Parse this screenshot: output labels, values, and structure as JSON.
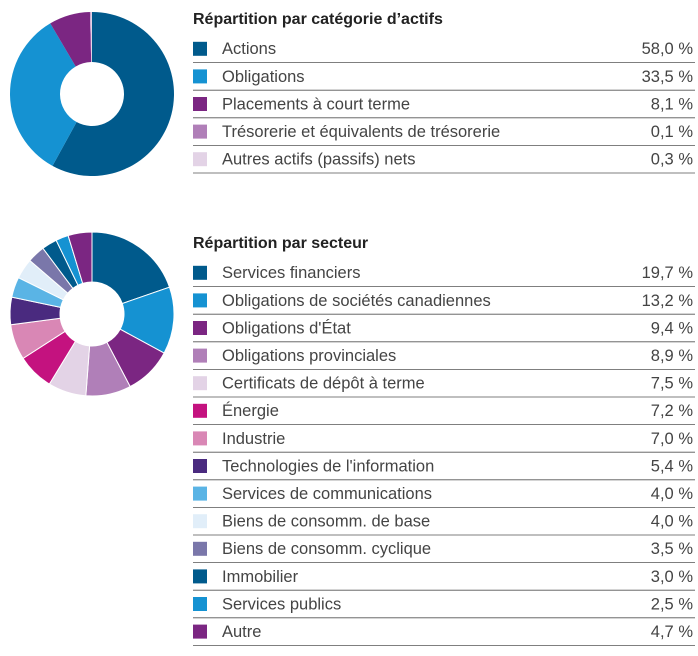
{
  "chart_data": [
    {
      "type": "pie",
      "title": "Répartition par catégorie d’actifs",
      "categories": [
        "Actions",
        "Obligations",
        "Placements à court terme",
        "Trésorerie et équivalents de trésorerie",
        "Autres actifs (passifs) nets"
      ],
      "values": [
        58.0,
        33.5,
        8.1,
        0.1,
        0.3
      ],
      "value_labels": [
        "58,0 %",
        "33,5 %",
        "8,1 %",
        "0,1 %",
        "0,3 %"
      ],
      "colors": [
        "#005a8c",
        "#1592d2",
        "#7b2682",
        "#b07fb8",
        "#e3d3e6"
      ]
    },
    {
      "type": "pie",
      "title": "Répartition par secteur",
      "categories": [
        "Services financiers",
        "Obligations de sociétés canadiennes",
        "Obligations d'État",
        "Obligations provinciales",
        "Certificats de dépôt à terme",
        "Énergie",
        "Industrie",
        "Technologies de l'information",
        "Services de communications",
        "Biens de consomm. de base",
        "Biens de consomm. cyclique",
        "Immobilier",
        "Services publics",
        "Autre"
      ],
      "values": [
        19.7,
        13.2,
        9.4,
        8.9,
        7.5,
        7.2,
        7.0,
        5.4,
        4.0,
        4.0,
        3.5,
        3.0,
        2.5,
        4.7
      ],
      "value_labels": [
        "19,7 %",
        "13,2 %",
        "9,4 %",
        "8,9 %",
        "7,5 %",
        "7,2 %",
        "7,0 %",
        "5,4 %",
        "4,0 %",
        "4,0 %",
        "3,5 %",
        "3,0 %",
        "2,5 %",
        "4,7 %"
      ],
      "colors": [
        "#005a8c",
        "#1592d2",
        "#7b2682",
        "#b07fb8",
        "#e3d3e6",
        "#c4127f",
        "#d987b5",
        "#4a2a7f",
        "#5ab4e5",
        "#e1eef9",
        "#7a77aa",
        "#005a8c",
        "#1592d2",
        "#7b2682"
      ]
    }
  ]
}
